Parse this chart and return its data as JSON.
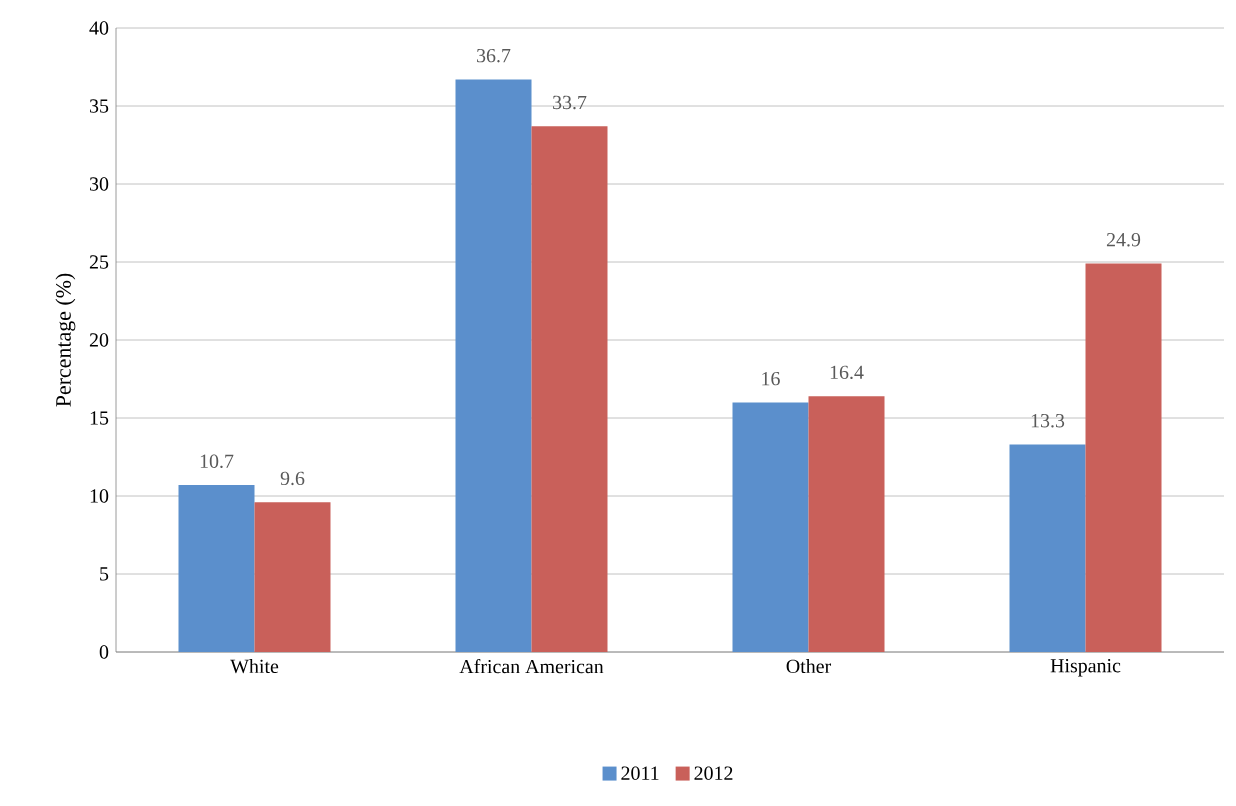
{
  "chart_data": {
    "type": "bar",
    "ylabel": "Percentage (%)",
    "categories": [
      "White",
      "African American",
      "Other",
      "Hispanic"
    ],
    "series": [
      {
        "name": "2011",
        "color": "#5b8fcc",
        "values": [
          10.7,
          36.7,
          16,
          13.3
        ]
      },
      {
        "name": "2012",
        "color": "#c9605a",
        "values": [
          9.6,
          33.7,
          16.4,
          24.9
        ]
      }
    ],
    "ylim": [
      0,
      40
    ],
    "yticks": [
      0,
      5,
      10,
      15,
      20,
      25,
      30,
      35,
      40
    ],
    "grid": "y",
    "legend": "bottom",
    "data_labels": true
  }
}
